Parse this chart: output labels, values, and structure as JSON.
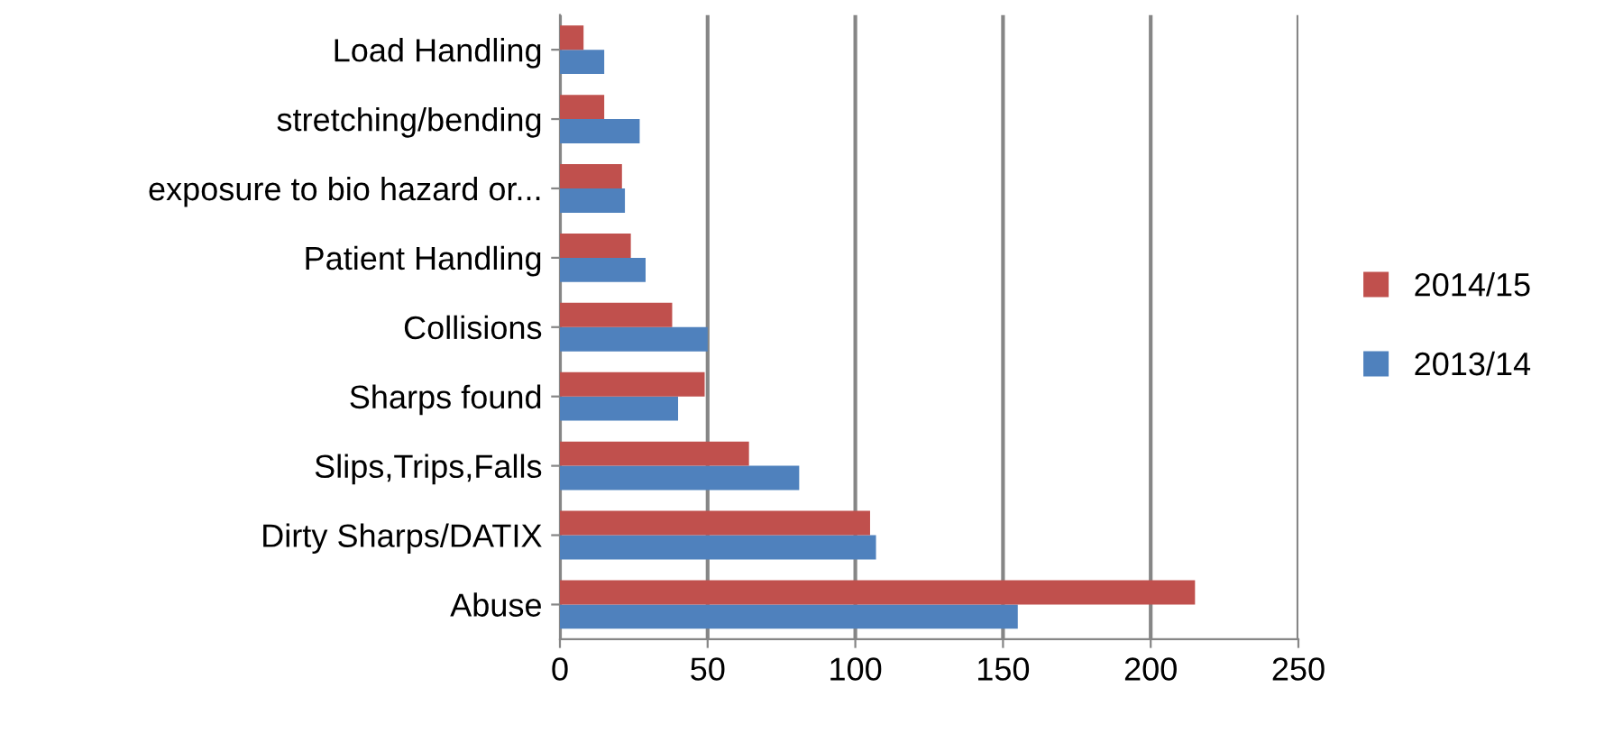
{
  "chart_data": {
    "type": "bar",
    "orientation": "horizontal",
    "categories": [
      "Load Handling",
      "stretching/bending",
      "exposure to bio hazard or...",
      "Patient Handling",
      "Collisions",
      "Sharps found",
      "Slips,Trips,Falls",
      "Dirty Sharps/DATIX",
      "Abuse"
    ],
    "series": [
      {
        "name": "2013/14",
        "color": "#4f81bd",
        "values": [
          15,
          27,
          22,
          29,
          50,
          40,
          81,
          107,
          155
        ]
      },
      {
        "name": "2014/15",
        "color": "#c0504d",
        "values": [
          8,
          15,
          21,
          24,
          38,
          49,
          64,
          105,
          215
        ]
      }
    ],
    "xlim": [
      0,
      250
    ],
    "xticks": [
      0,
      50,
      100,
      150,
      200,
      250
    ],
    "grid": "x",
    "legend": "right"
  }
}
